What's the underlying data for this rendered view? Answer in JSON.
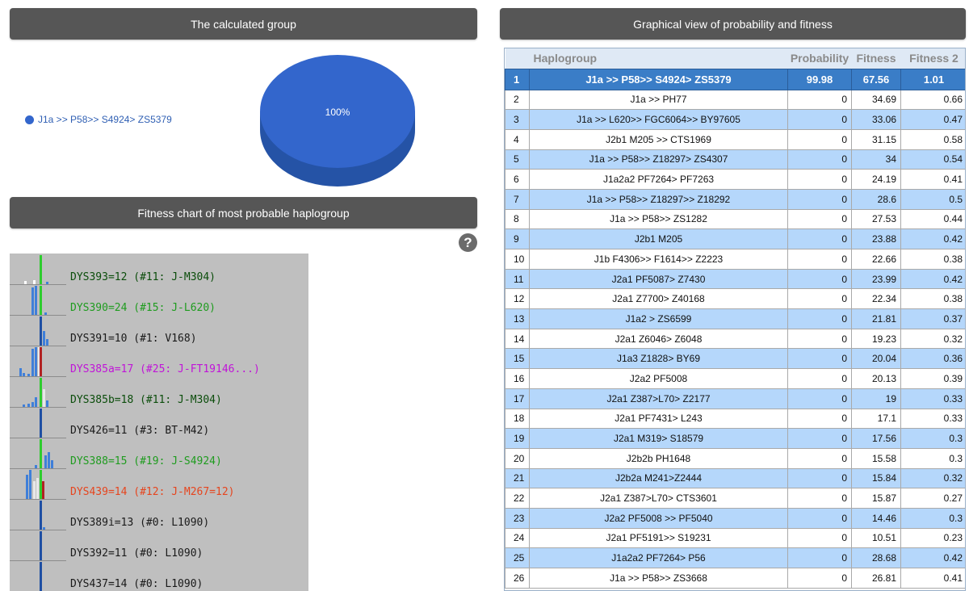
{
  "panels": {
    "calculated_group": "The calculated group",
    "graphical_view": "Graphical view of probability and fitness",
    "fitness_chart": "Fitness chart of most probable haplogroup"
  },
  "pie": {
    "legend_label": "J1a >> P58>> S4924> ZS5379",
    "slice_label": "100%",
    "color": "#3366cc"
  },
  "chart_data": {
    "type": "pie",
    "categories": [
      "J1a >> P58>> S4924> ZS5379"
    ],
    "values": [
      100
    ]
  },
  "help_icon": "?",
  "fitness_rows": [
    {
      "label": "DYS393=12 (#11: J-M304)",
      "color": "#0b4d0b",
      "bars": [
        {
          "x": 18,
          "h": 4,
          "c": "#ffffff"
        },
        {
          "x": 29,
          "h": 5,
          "c": "#ffffff"
        },
        {
          "x": 37,
          "h": 36,
          "c": "#2ecc2e"
        },
        {
          "x": 45,
          "h": 3,
          "c": "#3f7fd9"
        }
      ]
    },
    {
      "label": "DYS390=24 (#15: J-L620)",
      "color": "#1f9c1f",
      "bars": [
        {
          "x": 27,
          "h": 34,
          "c": "#3f7fd9"
        },
        {
          "x": 31,
          "h": 36,
          "c": "#3f7fd9"
        },
        {
          "x": 37,
          "h": 36,
          "c": "#2ecc2e"
        },
        {
          "x": 43,
          "h": 3,
          "c": "#3f7fd9"
        }
      ]
    },
    {
      "label": "DYS391=10 (#1: V168)",
      "color": "#1a1a1a",
      "bars": [
        {
          "x": 37,
          "h": 36,
          "c": "#1f4fa3"
        },
        {
          "x": 41,
          "h": 18,
          "c": "#3f7fd9"
        },
        {
          "x": 45,
          "h": 8,
          "c": "#3f7fd9"
        }
      ]
    },
    {
      "label": "DYS385a=17 (#25: J-FT19146...)",
      "color": "#c014d8",
      "bars": [
        {
          "x": 12,
          "h": 10,
          "c": "#3f7fd9"
        },
        {
          "x": 16,
          "h": 4,
          "c": "#3f7fd9"
        },
        {
          "x": 22,
          "h": 3,
          "c": "#3f7fd9"
        },
        {
          "x": 27,
          "h": 34,
          "c": "#3f7fd9"
        },
        {
          "x": 31,
          "h": 36,
          "c": "#3f7fd9"
        },
        {
          "x": 35,
          "h": 36,
          "c": "#e8e8e8"
        },
        {
          "x": 37,
          "h": 36,
          "c": "#b22222"
        }
      ]
    },
    {
      "label": "DYS385b=18 (#11: J-M304)",
      "color": "#0b4d0b",
      "bars": [
        {
          "x": 16,
          "h": 3,
          "c": "#3f7fd9"
        },
        {
          "x": 22,
          "h": 4,
          "c": "#3f7fd9"
        },
        {
          "x": 27,
          "h": 6,
          "c": "#3f7fd9"
        },
        {
          "x": 31,
          "h": 12,
          "c": "#3f7fd9"
        },
        {
          "x": 37,
          "h": 36,
          "c": "#2ecc2e"
        },
        {
          "x": 41,
          "h": 22,
          "c": "#e8e8e8"
        },
        {
          "x": 45,
          "h": 8,
          "c": "#3f7fd9"
        }
      ]
    },
    {
      "label": "DYS426=11 (#3: BT-M42)",
      "color": "#1a1a1a",
      "bars": [
        {
          "x": 37,
          "h": 36,
          "c": "#1f4fa3"
        }
      ]
    },
    {
      "label": "DYS388=15 (#19: J-S4924)",
      "color": "#1f9c1f",
      "bars": [
        {
          "x": 31,
          "h": 4,
          "c": "#3f7fd9"
        },
        {
          "x": 37,
          "h": 36,
          "c": "#2ecc2e"
        },
        {
          "x": 43,
          "h": 16,
          "c": "#3f7fd9"
        },
        {
          "x": 47,
          "h": 20,
          "c": "#3f7fd9"
        },
        {
          "x": 51,
          "h": 10,
          "c": "#3f7fd9"
        }
      ]
    },
    {
      "label": "DYS439=14 (#12: J-M267=12)",
      "color": "#e6451e",
      "bars": [
        {
          "x": 20,
          "h": 30,
          "c": "#3f7fd9"
        },
        {
          "x": 24,
          "h": 36,
          "c": "#3f7fd9"
        },
        {
          "x": 29,
          "h": 22,
          "c": "#e8e8e8"
        },
        {
          "x": 33,
          "h": 26,
          "c": "#e8e8e8"
        },
        {
          "x": 37,
          "h": 36,
          "c": "#2ecc2e"
        },
        {
          "x": 40,
          "h": 22,
          "c": "#b22222"
        }
      ]
    },
    {
      "label": "DYS389i=13 (#0: L1090)",
      "color": "#1a1a1a",
      "bars": [
        {
          "x": 37,
          "h": 36,
          "c": "#1f4fa3"
        },
        {
          "x": 41,
          "h": 3,
          "c": "#3f7fd9"
        }
      ]
    },
    {
      "label": "DYS392=11 (#0: L1090)",
      "color": "#1a1a1a",
      "bars": [
        {
          "x": 37,
          "h": 36,
          "c": "#1f4fa3"
        }
      ]
    },
    {
      "label": "DYS437=14 (#0: L1090)",
      "color": "#1a1a1a",
      "bars": [
        {
          "x": 37,
          "h": 36,
          "c": "#1f4fa3"
        }
      ]
    }
  ],
  "table": {
    "headers": {
      "index": "",
      "haplogroup": "Haplogroup",
      "probability": "Probability",
      "fitness": "Fitness",
      "fitness2": "Fitness 2"
    },
    "rows": [
      {
        "i": "1",
        "hg": "J1a >> P58>> S4924> ZS5379",
        "p": "99.98",
        "f": "67.56",
        "f2": "1.01"
      },
      {
        "i": "2",
        "hg": "J1a >> PH77",
        "p": "0",
        "f": "34.69",
        "f2": "0.66"
      },
      {
        "i": "3",
        "hg": "J1a >> L620>> FGC6064>> BY97605",
        "p": "0",
        "f": "33.06",
        "f2": "0.47"
      },
      {
        "i": "4",
        "hg": "J2b1 M205 >> CTS1969",
        "p": "0",
        "f": "31.15",
        "f2": "0.58"
      },
      {
        "i": "5",
        "hg": "J1a >> P58>> Z18297> ZS4307",
        "p": "0",
        "f": "34",
        "f2": "0.54"
      },
      {
        "i": "6",
        "hg": "J1a2a2 PF7264> PF7263",
        "p": "0",
        "f": "24.19",
        "f2": "0.41"
      },
      {
        "i": "7",
        "hg": "J1a >> P58>> Z18297>> Z18292",
        "p": "0",
        "f": "28.6",
        "f2": "0.5"
      },
      {
        "i": "8",
        "hg": "J1a >> P58>> ZS1282",
        "p": "0",
        "f": "27.53",
        "f2": "0.44"
      },
      {
        "i": "9",
        "hg": "J2b1 M205",
        "p": "0",
        "f": "23.88",
        "f2": "0.42"
      },
      {
        "i": "10",
        "hg": "J1b F4306>> F1614>> Z2223",
        "p": "0",
        "f": "22.66",
        "f2": "0.38"
      },
      {
        "i": "11",
        "hg": "J2a1 PF5087> Z7430",
        "p": "0",
        "f": "23.99",
        "f2": "0.42"
      },
      {
        "i": "12",
        "hg": "J2a1 Z7700> Z40168",
        "p": "0",
        "f": "22.34",
        "f2": "0.38"
      },
      {
        "i": "13",
        "hg": "J1a2 > ZS6599",
        "p": "0",
        "f": "21.81",
        "f2": "0.37"
      },
      {
        "i": "14",
        "hg": "J2a1 Z6046> Z6048",
        "p": "0",
        "f": "19.23",
        "f2": "0.32"
      },
      {
        "i": "15",
        "hg": "J1a3 Z1828> BY69",
        "p": "0",
        "f": "20.04",
        "f2": "0.36"
      },
      {
        "i": "16",
        "hg": "J2a2 PF5008",
        "p": "0",
        "f": "20.13",
        "f2": "0.39"
      },
      {
        "i": "17",
        "hg": "J2a1 Z387>L70> Z2177",
        "p": "0",
        "f": "19",
        "f2": "0.33"
      },
      {
        "i": "18",
        "hg": "J2a1 PF7431> L243",
        "p": "0",
        "f": "17.1",
        "f2": "0.33"
      },
      {
        "i": "19",
        "hg": "J2a1 M319> S18579",
        "p": "0",
        "f": "17.56",
        "f2": "0.3"
      },
      {
        "i": "20",
        "hg": "J2b2b PH1648",
        "p": "0",
        "f": "15.58",
        "f2": "0.3"
      },
      {
        "i": "21",
        "hg": "J2b2a M241>Z2444",
        "p": "0",
        "f": "15.84",
        "f2": "0.32"
      },
      {
        "i": "22",
        "hg": "J2a1 Z387>L70> CTS3601",
        "p": "0",
        "f": "15.87",
        "f2": "0.27"
      },
      {
        "i": "23",
        "hg": "J2a2 PF5008 >> PF5040",
        "p": "0",
        "f": "14.46",
        "f2": "0.3"
      },
      {
        "i": "24",
        "hg": "J2a1 PF5191>> S19231",
        "p": "0",
        "f": "10.51",
        "f2": "0.23"
      },
      {
        "i": "25",
        "hg": "J1a2a2 PF7264> P56",
        "p": "0",
        "f": "28.68",
        "f2": "0.42"
      },
      {
        "i": "26",
        "hg": "J1a >> P58>> ZS3668",
        "p": "0",
        "f": "26.81",
        "f2": "0.41"
      }
    ]
  }
}
